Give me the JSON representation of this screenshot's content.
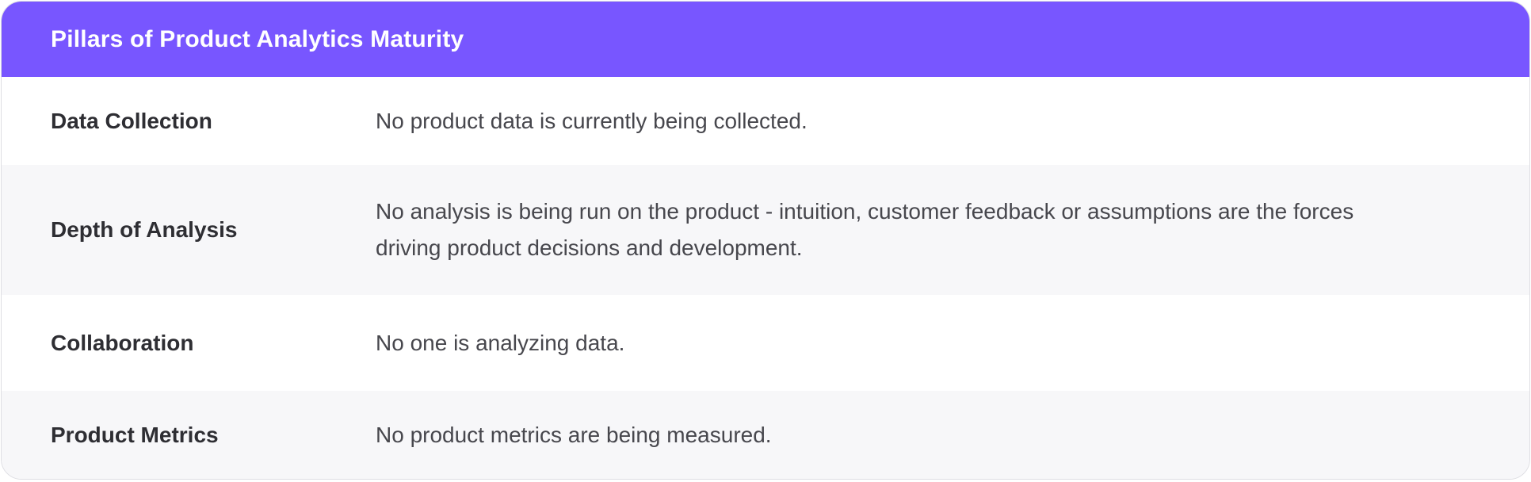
{
  "card": {
    "title": "Pillars of Product Analytics Maturity",
    "rows": [
      {
        "label": "Data Collection",
        "description": "No product data is currently being collected."
      },
      {
        "label": "Depth of Analysis",
        "description": "No analysis is being run on the product - intuition, customer feedback or assumptions are the forces driving product decisions and development."
      },
      {
        "label": "Collaboration",
        "description": "No one is analyzing data."
      },
      {
        "label": "Product Metrics",
        "description": "No product metrics are being measured."
      }
    ],
    "colors": {
      "header_bg": "#7856ff",
      "header_text": "#ffffff",
      "row_bg": "#ffffff",
      "row_alt_bg": "#f7f7f9",
      "label_text": "#2e2e33",
      "description_text": "#47474d",
      "border": "#dedee3"
    }
  }
}
